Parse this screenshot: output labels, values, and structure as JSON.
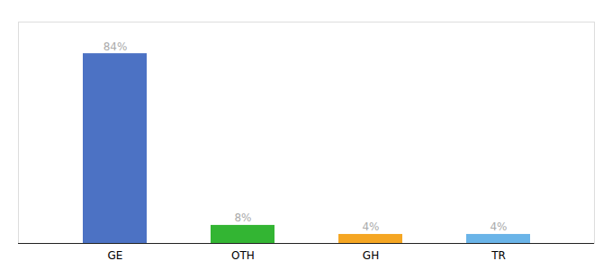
{
  "chart_data": {
    "type": "bar",
    "categories": [
      "GE",
      "OTH",
      "GH",
      "TR"
    ],
    "values": [
      84,
      8,
      4,
      4
    ],
    "value_labels": [
      "84%",
      "8%",
      "4%",
      "4%"
    ],
    "colors": [
      "#4c72c4",
      "#33b533",
      "#f5a623",
      "#6ab4e8"
    ],
    "ylim": [
      0,
      98
    ],
    "data_labels": true,
    "tick_labels": "x"
  }
}
